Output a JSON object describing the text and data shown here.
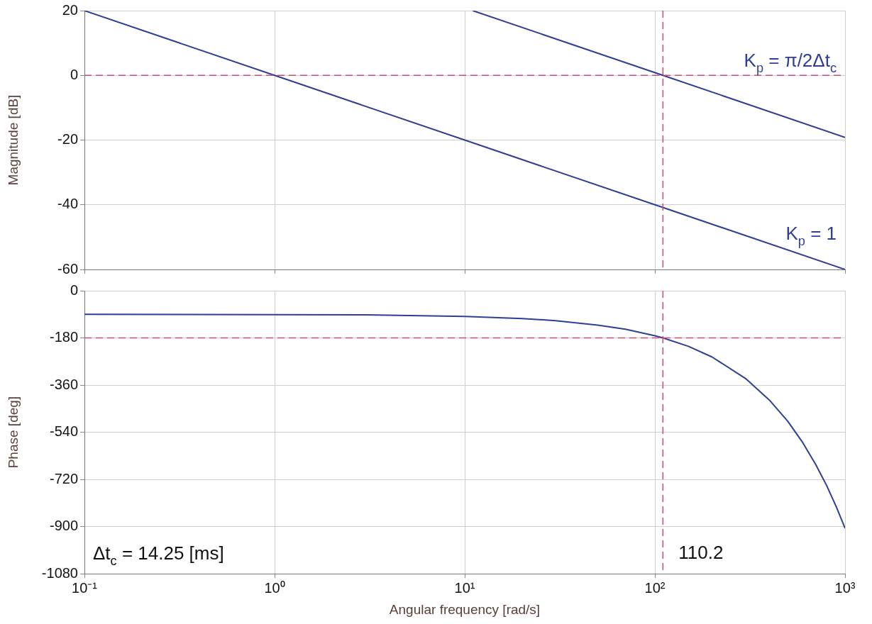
{
  "chart_data": [
    {
      "type": "line",
      "ylabel": "Magnitude [dB]",
      "xlim": [
        0.1,
        1000
      ],
      "xticks": [
        0.1,
        1,
        10,
        100,
        1000
      ],
      "log": "x",
      "ylim": [
        -60,
        20
      ],
      "yticks": [
        -60,
        -40,
        -20,
        0,
        20
      ],
      "grid": true,
      "legend": false,
      "tick_labels": "y",
      "line_style": "solid",
      "marker": "none",
      "series": [
        {
          "name": "K$_{p}$ = 1",
          "color": "#2e3f95",
          "x": [
            0.1,
            1,
            10,
            100,
            1000
          ],
          "values": [
            20,
            0,
            -20,
            -40,
            -60
          ]
        },
        {
          "name": "K$_{p}$ = π/2Δt$_{c}$",
          "color": "#2e3f95",
          "x": [
            11.02,
            110.2,
            1000
          ],
          "values": [
            20,
            0,
            -19.2
          ]
        }
      ],
      "ref_lines": [
        {
          "axis": "y",
          "value": 0,
          "color": "#d24a6e",
          "line_style": "dashed"
        },
        {
          "axis": "x",
          "value": 110.2,
          "color": "#d24a6e",
          "line_style": "dashed"
        }
      ]
    },
    {
      "type": "line",
      "xlabel": "Angular frequency [rad/s]",
      "ylabel": "Phase [deg]",
      "xlim": [
        0.1,
        1000
      ],
      "xticks": [
        {
          "value": 0.1,
          "label": "10⁻¹"
        },
        {
          "value": 1,
          "label": "10⁰"
        },
        {
          "value": 10,
          "label": "10¹"
        },
        {
          "value": 100,
          "label": "10²"
        },
        {
          "value": 1000,
          "label": "10³"
        }
      ],
      "log": "x",
      "ylim": [
        -1080,
        0
      ],
      "yticks": [
        -1080,
        -900,
        -720,
        -540,
        -360,
        -180,
        0
      ],
      "grid": true,
      "legend": false,
      "line_style": "solid",
      "marker": "none",
      "series": [
        {
          "color": "#2e3f95",
          "x": [
            0.1,
            1,
            3,
            10,
            20,
            30,
            50,
            70,
            100,
            110.2,
            150,
            200,
            300,
            400,
            500,
            600,
            700,
            800,
            900,
            1000
          ],
          "values": [
            -90,
            -91,
            -92,
            -98,
            -106,
            -114,
            -131,
            -147,
            -172,
            -180,
            -212,
            -253,
            -335,
            -417,
            -498,
            -580,
            -662,
            -743,
            -825,
            -906
          ]
        }
      ],
      "ref_lines": [
        {
          "axis": "y",
          "value": -180,
          "color": "#d24a6e",
          "line_style": "dashed"
        },
        {
          "axis": "x",
          "value": 110.2,
          "color": "#d24a6e",
          "line_style": "dashed"
        }
      ],
      "annotations": [
        "Δt$_{c}$ = 14.25 [ms]",
        {
          "text": "110.2",
          "x": 110.2,
          "y": -990
        }
      ]
    }
  ]
}
